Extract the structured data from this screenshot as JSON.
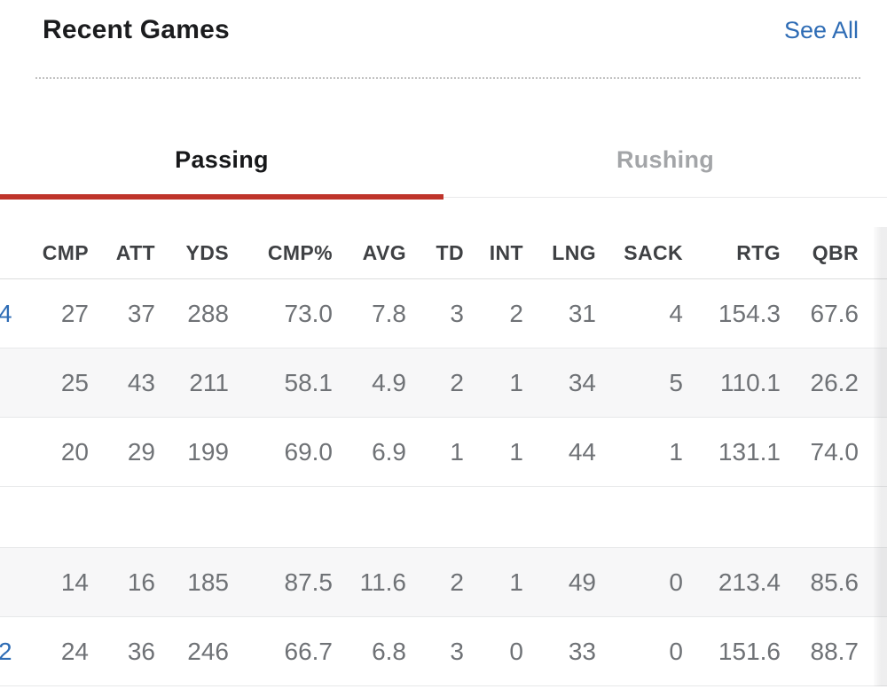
{
  "header": {
    "title": "Recent Games",
    "see_all_label": "See All"
  },
  "tabs": [
    {
      "label": "Passing",
      "active": true
    },
    {
      "label": "Rushing",
      "active": false
    }
  ],
  "table": {
    "columns": [
      "CMP",
      "ATT",
      "YDS",
      "CMP%",
      "AVG",
      "TD",
      "INT",
      "LNG",
      "SACK",
      "RTG",
      "QBR"
    ],
    "rows": [
      {
        "partial_score_text": "4",
        "empty": false,
        "striped": false,
        "values": [
          "27",
          "37",
          "288",
          "73.0",
          "7.8",
          "3",
          "2",
          "31",
          "4",
          "154.3",
          "67.6"
        ]
      },
      {
        "partial_score_text": "",
        "empty": false,
        "striped": true,
        "values": [
          "25",
          "43",
          "211",
          "58.1",
          "4.9",
          "2",
          "1",
          "34",
          "5",
          "110.1",
          "26.2"
        ]
      },
      {
        "partial_score_text": "",
        "empty": false,
        "striped": false,
        "values": [
          "20",
          "29",
          "199",
          "69.0",
          "6.9",
          "1",
          "1",
          "44",
          "1",
          "131.1",
          "74.0"
        ]
      },
      {
        "partial_score_text": "",
        "empty": true,
        "striped": false,
        "values": [
          "",
          "",
          "",
          "",
          "",
          "",
          "",
          "",
          "",
          "",
          ""
        ]
      },
      {
        "partial_score_text": "",
        "empty": false,
        "striped": true,
        "values": [
          "14",
          "16",
          "185",
          "87.5",
          "11.6",
          "2",
          "1",
          "49",
          "0",
          "213.4",
          "85.6"
        ]
      },
      {
        "partial_score_text": "2",
        "empty": false,
        "striped": false,
        "values": [
          "24",
          "36",
          "246",
          "66.7",
          "6.8",
          "3",
          "0",
          "33",
          "0",
          "151.6",
          "88.7"
        ]
      }
    ]
  },
  "colors": {
    "accent_red": "#bf342b",
    "link_blue": "#2e6cb5",
    "active_tab_text": "#17181a",
    "inactive_tab_text": "#a3a5a8",
    "header_text": "#3f4144",
    "cell_text": "#6f7276",
    "stripe_bg": "#f7f7f8",
    "row_border": "#e7e8e9"
  }
}
